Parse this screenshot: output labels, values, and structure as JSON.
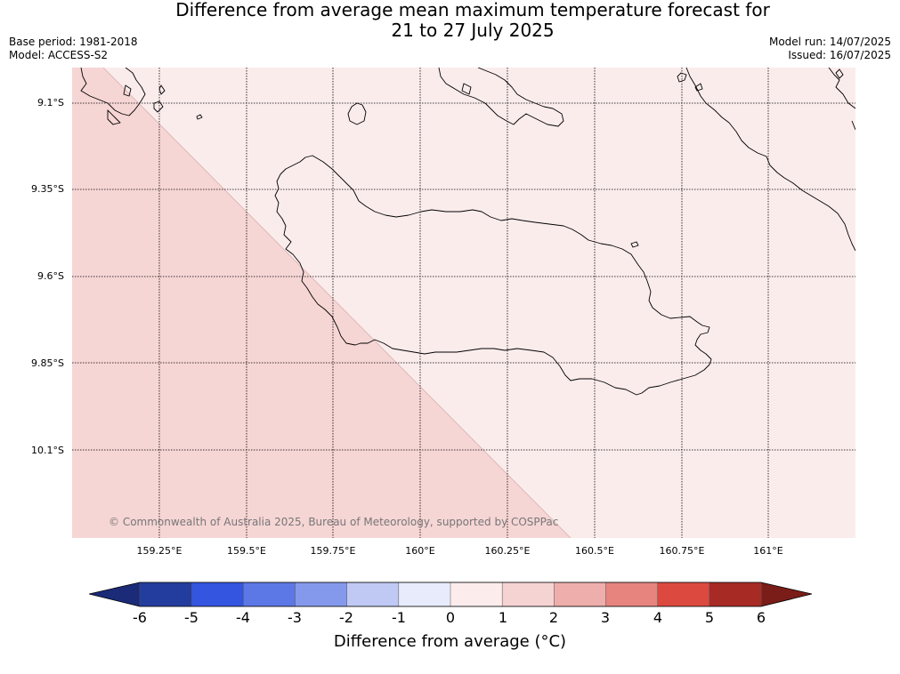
{
  "title_line1": "Difference from average mean maximum temperature forecast for",
  "title_line2": "21 to 27 July 2025",
  "base_period": "Base period: 1981-2018",
  "model": "Model: ACCESS-S2",
  "model_run": "Model run: 14/07/2025",
  "issued": "Issued: 16/07/2025",
  "copyright": "© Commonwealth of Australia 2025, Bureau of Meteorology, supported by COSPPac",
  "map": {
    "lat_labels": [
      "9.1°S",
      "9.35°S",
      "9.6°S",
      "9.85°S",
      "10.1°S"
    ],
    "lon_labels": [
      "159.25°E",
      "159.5°E",
      "159.75°E",
      "160°E",
      "160.25°E",
      "160.5°E",
      "160.75°E",
      "161°E"
    ],
    "regions": [
      {
        "range": "1 to 2",
        "color": "#f6d5d5"
      },
      {
        "range": "0 to 1",
        "color": "#fbecec"
      }
    ]
  },
  "colorbar": {
    "ticks": [
      "-6",
      "-5",
      "-4",
      "-3",
      "-2",
      "-1",
      "0",
      "1",
      "2",
      "3",
      "4",
      "5",
      "6"
    ],
    "colors": [
      "#233d9f",
      "#3355e0",
      "#5c77e6",
      "#8599ec",
      "#c0c8f4",
      "#e8ebfb",
      "#fcecec",
      "#f6d3d3",
      "#eeaeab",
      "#e6847d",
      "#dc4a3f",
      "#a82a24"
    ],
    "low_extend_color": "#1b2b78",
    "high_extend_color": "#7a1c18",
    "label": "Difference from average (°C)"
  }
}
